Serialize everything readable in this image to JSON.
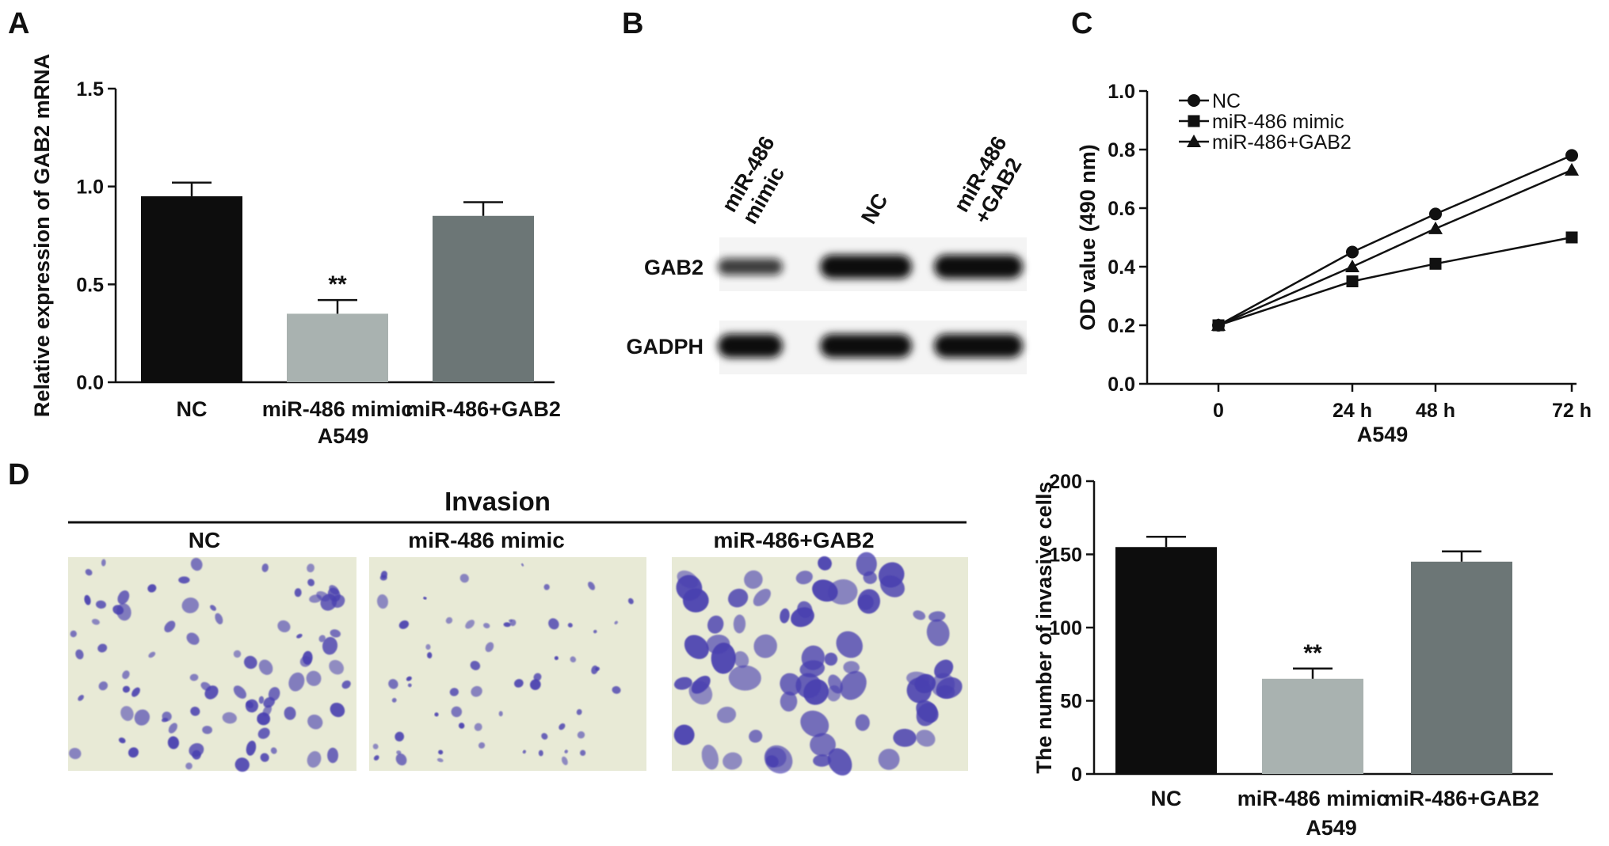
{
  "panels": {
    "A": {
      "letter": "A",
      "chart_data": {
        "type": "bar",
        "categories": [
          "NC",
          "miR-486 mimic",
          "miR-486+GAB2"
        ],
        "values": [
          0.95,
          0.35,
          0.85
        ],
        "errors": [
          0.07,
          0.07,
          0.07
        ],
        "bar_colors": [
          "#0d0d0d",
          "#a9b2b0",
          "#6c7676"
        ],
        "annotations": [
          {
            "category": "miR-486 mimic",
            "text": "**"
          }
        ],
        "xlabel": "A549",
        "ylabel": "Relative expression of GAB2 mRNA",
        "ylim": [
          0,
          1.5
        ],
        "yticks": [
          "0.0",
          "0.5",
          "1.0",
          "1.5"
        ],
        "grid": false
      }
    },
    "B": {
      "letter": "B",
      "lane_labels": [
        [
          "miR-486",
          "mimic"
        ],
        [
          "NC"
        ],
        [
          "miR-486",
          "+GAB2"
        ]
      ],
      "rows": [
        {
          "label": "GAB2",
          "intensities": [
            0.55,
            1.0,
            1.0
          ]
        },
        {
          "label": "GADPH",
          "intensities": [
            1.0,
            1.0,
            1.0
          ]
        }
      ]
    },
    "C": {
      "letter": "C",
      "chart_data": {
        "type": "line",
        "x": [
          "0",
          "24 h",
          "48 h",
          "72 h"
        ],
        "series": [
          {
            "name": "NC",
            "marker": "circle",
            "values": [
              0.2,
              0.45,
              0.58,
              0.78
            ]
          },
          {
            "name": "miR-486 mimic",
            "marker": "square",
            "values": [
              0.2,
              0.35,
              0.41,
              0.5
            ]
          },
          {
            "name": "miR-486+GAB2",
            "marker": "triangle",
            "values": [
              0.2,
              0.4,
              0.53,
              0.73
            ]
          }
        ],
        "xlabel": "A549",
        "ylabel": "OD value (490 nm)",
        "ylim": [
          0.0,
          1.0
        ],
        "yticks": [
          "0.0",
          "0.2",
          "0.4",
          "0.6",
          "0.8",
          "1.0"
        ],
        "legend": "top-left",
        "grid": false
      }
    },
    "D": {
      "letter": "D",
      "heading": "Invasion",
      "image_labels": [
        "NC",
        "miR-486 mimic",
        "miR-486+GAB2"
      ],
      "stain_color": "#4a3fb0",
      "background_color": "#e8ead6",
      "chart_data": {
        "type": "bar",
        "categories": [
          "NC",
          "miR-486 mimic",
          "miR-486+GAB2"
        ],
        "values": [
          155,
          65,
          145
        ],
        "errors": [
          7,
          7,
          7
        ],
        "bar_colors": [
          "#0d0d0d",
          "#a9b2b0",
          "#6c7676"
        ],
        "annotations": [
          {
            "category": "miR-486 mimic",
            "text": "**"
          }
        ],
        "xlabel": "A549",
        "ylabel": "The number of invasive cells",
        "ylim": [
          0,
          200
        ],
        "yticks": [
          "0",
          "50",
          "100",
          "150",
          "200"
        ],
        "grid": false
      }
    }
  }
}
